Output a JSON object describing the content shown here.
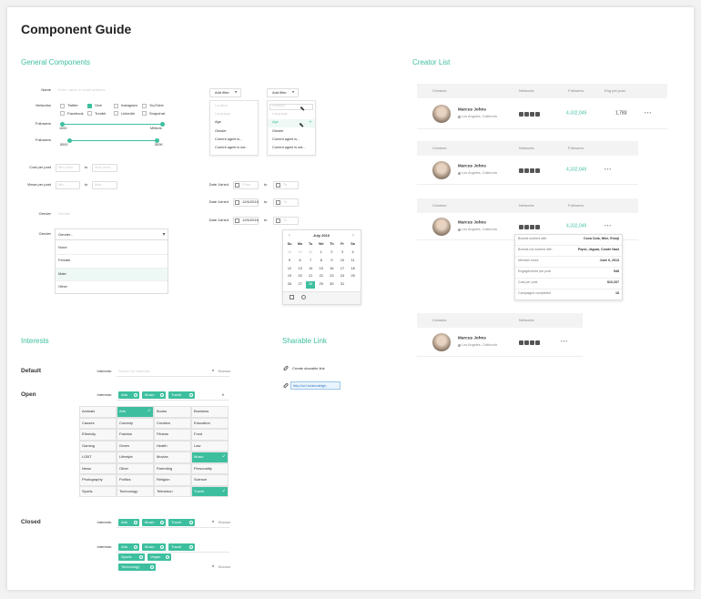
{
  "header": {
    "title": "Component Guide"
  },
  "general": {
    "heading": "General Components",
    "name": {
      "label": "Name",
      "placeholder": "Enter name or email address"
    },
    "networks": {
      "label": "Networks",
      "options": [
        "Twitter",
        "Vine",
        "Instagram",
        "YouTube",
        "Facebook",
        "Tumblr",
        "LinkedIn",
        "Snapchat"
      ],
      "checked": [
        false,
        true,
        false,
        false,
        false,
        false,
        false,
        false
      ]
    },
    "followers_range": {
      "label": "Followers",
      "min_label": "1000",
      "max_label": "Millions"
    },
    "followers_range_2": {
      "label": "Followers",
      "min_label": "5000",
      "max_label": "500K"
    },
    "cost_per_post": {
      "label": "Cost per post",
      "min": "Min price",
      "to": "to",
      "max": "Max price"
    },
    "views_per_post": {
      "label": "Views per post",
      "min": "Min",
      "to": "to",
      "max": "Max"
    },
    "gender_input": {
      "label": "Gender",
      "placeholder": "Gender"
    },
    "gender_select": {
      "label": "Gender",
      "value": "Gender...",
      "options": [
        "None",
        "Female",
        "Male",
        "Other"
      ],
      "hover": 2
    },
    "filter_menus": [
      {
        "button": "Add filter",
        "items": [
          "Location",
          "Language",
          "Age",
          "Gender",
          "Current agent is...",
          "Current agent is not..."
        ],
        "muted": [
          0,
          1
        ],
        "active": null
      },
      {
        "button": "Add filter",
        "items": [
          "Location",
          "Language",
          "Age",
          "Gender",
          "Current agent is...",
          "Current agent is not..."
        ],
        "muted": [
          0,
          1
        ],
        "active": 2
      }
    ],
    "date_rows": [
      {
        "label": "Date Joined",
        "from": "From",
        "to": "to",
        "end": "To"
      },
      {
        "label": "Date Joined",
        "from": "12/6/2016",
        "to": "to",
        "end": "To"
      },
      {
        "label": "Date Joined",
        "from": "12/6/2016",
        "to": "to",
        "end": "To"
      }
    ],
    "calendar": {
      "month": "July 2016",
      "weekdays": [
        "Su",
        "Mo",
        "Tu",
        "We",
        "Th",
        "Fr",
        "Sa"
      ],
      "weeks": [
        [
          "28",
          "29",
          "30",
          "1",
          "2",
          "3",
          "4"
        ],
        [
          "5",
          "6",
          "7",
          "8",
          "9",
          "10",
          "11"
        ],
        [
          "12",
          "13",
          "14",
          "15",
          "16",
          "17",
          "18"
        ],
        [
          "19",
          "20",
          "21",
          "22",
          "23",
          "24",
          "25"
        ],
        [
          "26",
          "27",
          "28",
          "29",
          "30",
          "31"
        ]
      ],
      "selected": [
        4,
        2
      ]
    }
  },
  "creator_list": {
    "heading": "Creator List",
    "tables": [
      {
        "columns": [
          "Creators",
          "Networks",
          "Followers",
          "Eng per post"
        ],
        "row": {
          "name": "Marcus Johns",
          "location": "Los Angeles, California",
          "followers": "4,332,049",
          "eng": "1,783"
        }
      },
      {
        "columns": [
          "Creators",
          "Networks",
          "Followers"
        ],
        "row": {
          "name": "Marcus Johns",
          "location": "Los Angeles, California",
          "followers": "4,332,049"
        }
      },
      {
        "columns": [
          "Creators",
          "Networks",
          "Followers"
        ],
        "row": {
          "name": "Marcus Johns",
          "location": "Los Angeles, California",
          "followers": "4,332,049"
        }
      },
      {
        "columns": [
          "Creators",
          "Networks"
        ],
        "row": {
          "name": "Marcus Johns",
          "location": "Los Angeles, California"
        }
      }
    ],
    "details": [
      {
        "label": "Brands worked with",
        "value": "Coca Cola, Nike, Emoji"
      },
      {
        "label": "Brands not worked with",
        "value": "Pepsi, Jaguar, Condé Nast"
      },
      {
        "label": "Member since",
        "value": "June 6, 2013"
      },
      {
        "label": "Engagements per post",
        "value": "548"
      },
      {
        "label": "Cost per post",
        "value": "$10,337"
      },
      {
        "label": "Campaigns completed",
        "value": "18"
      }
    ]
  },
  "interests": {
    "heading": "Interests",
    "default": {
      "label": "Default",
      "field": "Interests:",
      "placeholder": "Search for interests",
      "browse": "Browse"
    },
    "open": {
      "label": "Open",
      "field": "Interests:",
      "tags": [
        "Arts",
        "Music",
        "Travel"
      ],
      "options": [
        "Animals",
        "Arts",
        "Books",
        "Business",
        "Causes",
        "Comedy",
        "Curation",
        "Education",
        "Ethnicity",
        "Fashion",
        "Fitness",
        "Food",
        "Gaming",
        "Green",
        "Health",
        "Law",
        "LGBT",
        "Lifestyle",
        "Movies",
        "Music",
        "News",
        "Other",
        "Parenting",
        "Personality",
        "Photography",
        "Politics",
        "Religion",
        "Science",
        "Sports",
        "Technology",
        "Television",
        "Travel"
      ]
    },
    "closed": {
      "label": "Closed",
      "field": "Interests:",
      "tags": [
        "Arts",
        "Music",
        "Travel"
      ],
      "browse": "Browse"
    },
    "multi": {
      "field": "Interests:",
      "tags": [
        "Arts",
        "Music",
        "Travel",
        "Sports",
        "Vegan",
        "Technology"
      ],
      "browse": "Browse"
    }
  },
  "sharable_link": {
    "heading": "Sharable Link",
    "action": "Create sharable link",
    "url": "http://url.to/abcdefgh"
  }
}
